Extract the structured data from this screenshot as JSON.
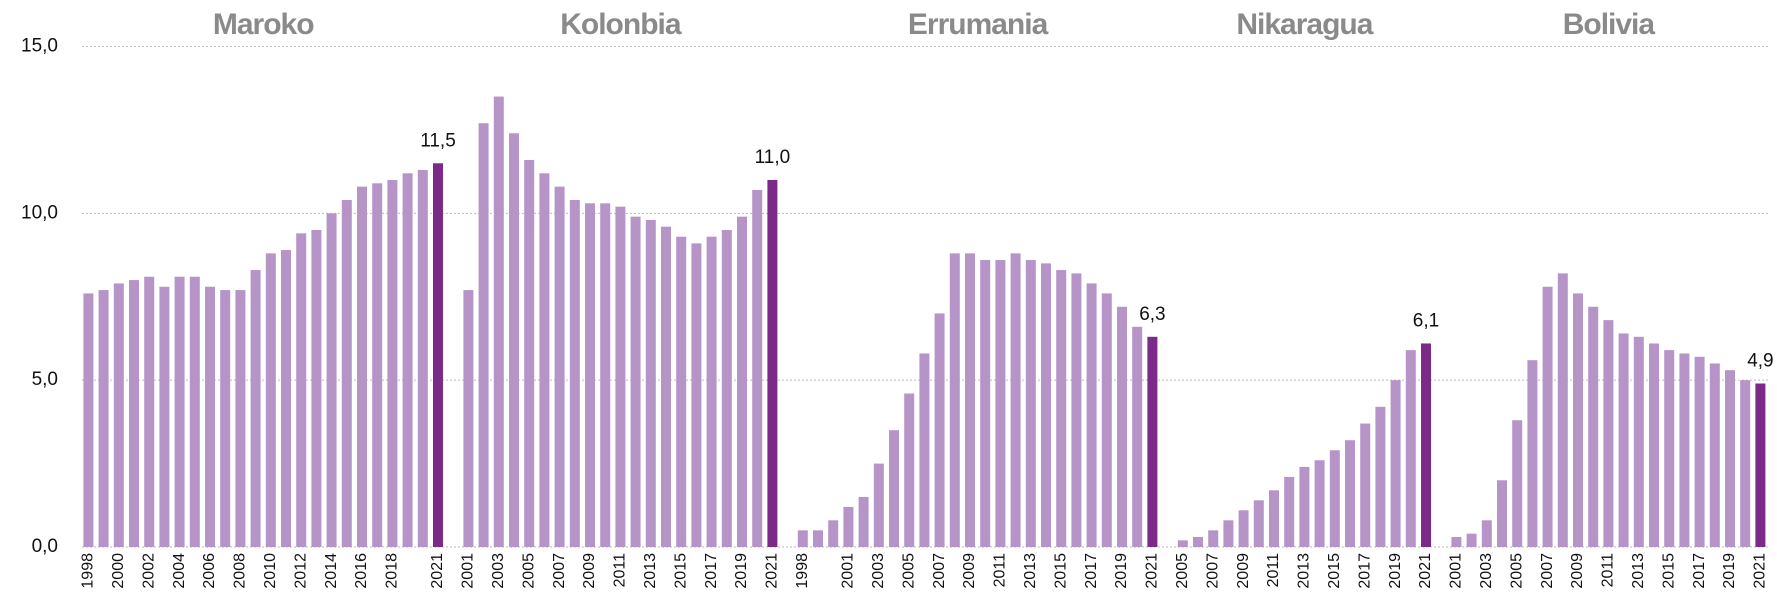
{
  "chart_data": {
    "type": "bar",
    "color": "#b794c7",
    "highlight_color": "#7b2a88",
    "grid": true,
    "ylim": [
      0,
      15
    ],
    "yticks": [
      {
        "value": 0,
        "label": "0,0"
      },
      {
        "value": 5,
        "label": "5,0"
      },
      {
        "value": 10,
        "label": "10,0"
      },
      {
        "value": 15,
        "label": "15,0"
      }
    ],
    "panels": [
      {
        "title": "Maroko",
        "categories": [
          "1998",
          null,
          "2000",
          null,
          "2002",
          null,
          "2004",
          null,
          "2006",
          null,
          "2008",
          null,
          "2010",
          null,
          "2012",
          null,
          "2014",
          null,
          "2016",
          null,
          "2018",
          null,
          null,
          "2021"
        ],
        "values": [
          7.6,
          7.7,
          7.9,
          8.0,
          8.1,
          7.8,
          8.1,
          8.1,
          7.8,
          7.7,
          7.7,
          8.3,
          8.8,
          8.9,
          9.4,
          9.5,
          10.0,
          10.4,
          10.8,
          10.9,
          11.0,
          11.2,
          11.3,
          11.5
        ],
        "value_labels": [
          null,
          null,
          null,
          null,
          null,
          null,
          null,
          null,
          null,
          null,
          null,
          null,
          null,
          null,
          null,
          null,
          null,
          null,
          null,
          null,
          null,
          null,
          null,
          "11,5"
        ]
      },
      {
        "title": "Kolonbia",
        "categories": [
          "2001",
          null,
          "2003",
          null,
          "2005",
          null,
          "2007",
          null,
          "2009",
          null,
          "2011",
          null,
          "2013",
          null,
          "2015",
          null,
          "2017",
          null,
          "2019",
          null,
          "2021"
        ],
        "values": [
          7.7,
          12.7,
          13.5,
          12.4,
          11.6,
          11.2,
          10.8,
          10.4,
          10.3,
          10.3,
          10.2,
          9.9,
          9.8,
          9.6,
          9.3,
          9.1,
          9.3,
          9.5,
          9.9,
          10.7,
          11.0
        ],
        "value_labels": [
          null,
          null,
          null,
          null,
          null,
          null,
          null,
          null,
          null,
          null,
          null,
          null,
          null,
          null,
          null,
          null,
          null,
          null,
          null,
          null,
          "11,0"
        ]
      },
      {
        "title": "Errumania",
        "categories": [
          "1998",
          null,
          null,
          "2001",
          null,
          "2003",
          null,
          "2005",
          null,
          "2007",
          null,
          "2009",
          null,
          "2011",
          null,
          "2013",
          null,
          "2015",
          null,
          "2017",
          null,
          "2019",
          null,
          "2021"
        ],
        "values": [
          0.5,
          0.5,
          0.8,
          1.2,
          1.5,
          2.5,
          3.5,
          4.6,
          5.8,
          7.0,
          8.8,
          8.8,
          8.6,
          8.6,
          8.8,
          8.6,
          8.5,
          8.3,
          8.2,
          7.9,
          7.6,
          7.2,
          6.6,
          6.3
        ],
        "value_labels": [
          null,
          null,
          null,
          null,
          null,
          null,
          null,
          null,
          null,
          null,
          null,
          null,
          null,
          null,
          null,
          null,
          null,
          null,
          null,
          null,
          null,
          null,
          null,
          "6,3"
        ]
      },
      {
        "title": "Nikaragua",
        "categories": [
          "2005",
          null,
          "2007",
          null,
          "2009",
          null,
          "2011",
          null,
          "2013",
          null,
          "2015",
          null,
          "2017",
          null,
          "2019",
          null,
          "2021"
        ],
        "values": [
          0.2,
          0.3,
          0.5,
          0.8,
          1.1,
          1.4,
          1.7,
          2.1,
          2.4,
          2.6,
          2.9,
          3.2,
          3.7,
          4.2,
          5.0,
          5.9,
          6.1
        ],
        "value_labels": [
          null,
          null,
          null,
          null,
          null,
          null,
          null,
          null,
          null,
          null,
          null,
          null,
          null,
          null,
          null,
          null,
          "6,1"
        ]
      },
      {
        "title": "Bolivia",
        "categories": [
          "2001",
          null,
          "2003",
          null,
          "2005",
          null,
          "2007",
          null,
          "2009",
          null,
          "2011",
          null,
          "2013",
          null,
          "2015",
          null,
          "2017",
          null,
          "2019",
          null,
          "2021"
        ],
        "values": [
          0.3,
          0.4,
          0.8,
          2.0,
          3.8,
          5.6,
          7.8,
          8.2,
          7.6,
          7.2,
          6.8,
          6.4,
          6.3,
          6.1,
          5.9,
          5.8,
          5.7,
          5.5,
          5.3,
          5.0,
          4.9
        ],
        "value_labels": [
          null,
          null,
          null,
          null,
          null,
          null,
          null,
          null,
          null,
          null,
          null,
          null,
          null,
          null,
          null,
          null,
          null,
          null,
          null,
          null,
          "4,9"
        ]
      }
    ]
  }
}
